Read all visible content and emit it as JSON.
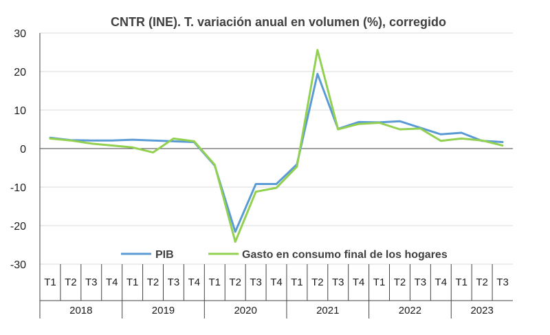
{
  "chart_data": {
    "type": "line",
    "title": "CNTR (INE). T. variación anual en volumen (%), corregido",
    "xlabel": "",
    "ylabel": "",
    "ylim": [
      -30,
      30
    ],
    "yticks": [
      30,
      20,
      10,
      0,
      -10,
      -20,
      -30
    ],
    "grid": true,
    "legend_position": "bottom-inside",
    "categories": [
      "T1",
      "T2",
      "T3",
      "T4",
      "T1",
      "T2",
      "T3",
      "T4",
      "T1",
      "T2",
      "T3",
      "T4",
      "T1",
      "T2",
      "T3",
      "T4",
      "T1",
      "T2",
      "T3",
      "T4",
      "T1",
      "T2",
      "T3"
    ],
    "years": [
      {
        "label": "2018",
        "quarters": 4
      },
      {
        "label": "2019",
        "quarters": 4
      },
      {
        "label": "2020",
        "quarters": 4
      },
      {
        "label": "2021",
        "quarters": 4
      },
      {
        "label": "2022",
        "quarters": 4
      },
      {
        "label": "2023",
        "quarters": 3
      }
    ],
    "series": [
      {
        "name": "PIB",
        "color": "#5b9bd5",
        "values": [
          2.8,
          2.2,
          2.1,
          2.1,
          2.3,
          2.1,
          1.9,
          1.7,
          -4.4,
          -21.6,
          -9.2,
          -9.2,
          -4.1,
          19.4,
          5.1,
          6.9,
          6.8,
          7.1,
          5.4,
          3.7,
          4.1,
          2.0,
          1.7
        ]
      },
      {
        "name": "Gasto en consumo final de los hogares",
        "color": "#92d050",
        "values": [
          2.6,
          2.1,
          1.3,
          0.8,
          0.3,
          -1.0,
          2.6,
          1.9,
          -4.2,
          -24.2,
          -11.2,
          -10.2,
          -4.7,
          25.6,
          5.0,
          6.4,
          6.7,
          5.0,
          5.2,
          2.0,
          2.6,
          2.1,
          0.8
        ]
      }
    ]
  }
}
